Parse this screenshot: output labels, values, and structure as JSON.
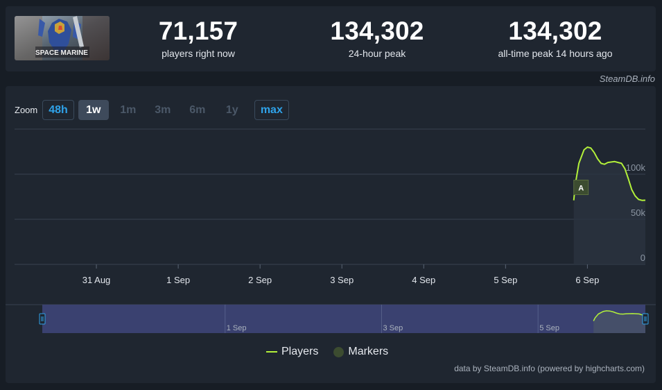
{
  "stats": {
    "current": {
      "value": "71,157",
      "label": "players right now"
    },
    "peak_24h": {
      "value": "134,302",
      "label": "24-hour peak"
    },
    "all_time": {
      "value": "134,302",
      "label": "all-time peak 14 hours ago"
    }
  },
  "game": {
    "logo_text": "SPACE MARINE"
  },
  "credit": "SteamDB.info",
  "zoom": {
    "label": "Zoom",
    "options": [
      "48h",
      "1w",
      "1m",
      "3m",
      "6m",
      "1y",
      "max"
    ],
    "active": "1w"
  },
  "chart_data": {
    "type": "line",
    "series": [
      {
        "name": "Players",
        "color": "#b3f13a",
        "points": [
          [
            "2024-09-05 20:00",
            71000
          ],
          [
            "2024-09-05 20:30",
            90000
          ],
          [
            "2024-09-05 21:30",
            112000
          ],
          [
            "2024-09-05 23:00",
            127000
          ],
          [
            "2024-09-06 00:00",
            130000
          ],
          [
            "2024-09-06 01:00",
            129000
          ],
          [
            "2024-09-06 02:00",
            124000
          ],
          [
            "2024-09-06 03:00",
            117000
          ],
          [
            "2024-09-06 04:00",
            112000
          ],
          [
            "2024-09-06 05:00",
            111000
          ],
          [
            "2024-09-06 06:00",
            113000
          ],
          [
            "2024-09-06 08:00",
            114000
          ],
          [
            "2024-09-06 10:00",
            112000
          ],
          [
            "2024-09-06 11:00",
            106000
          ],
          [
            "2024-09-06 12:00",
            95000
          ],
          [
            "2024-09-06 13:00",
            83000
          ],
          [
            "2024-09-06 14:00",
            76000
          ],
          [
            "2024-09-06 15:00",
            72000
          ],
          [
            "2024-09-06 16:00",
            71000
          ],
          [
            "2024-09-06 17:00",
            71157
          ]
        ]
      }
    ],
    "markers": [
      {
        "label": "A",
        "x": "2024-09-05 20:00",
        "y": 85000
      }
    ],
    "x_ticks": [
      "31 Aug",
      "1 Sep",
      "2 Sep",
      "3 Sep",
      "4 Sep",
      "5 Sep",
      "6 Sep"
    ],
    "y_ticks": [
      "0",
      "50k",
      "100k"
    ],
    "ylim": [
      0,
      150000
    ],
    "grid": true,
    "navigator_ticks": [
      "1 Sep",
      "3 Sep",
      "5 Sep"
    ],
    "legend": {
      "position": "bottom",
      "items": [
        "Players",
        "Markers"
      ]
    },
    "source": "data by SteamDB.info (powered by highcharts.com)"
  }
}
